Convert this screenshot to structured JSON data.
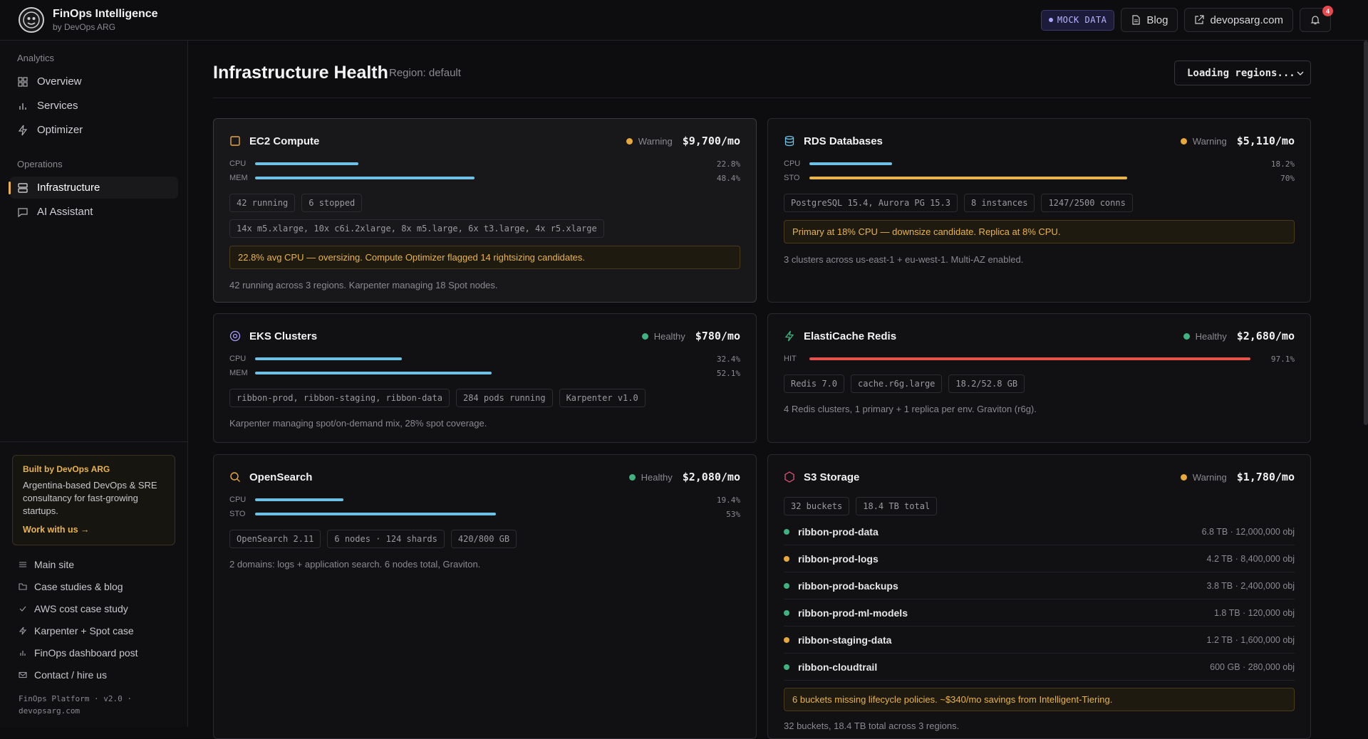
{
  "header": {
    "brand_title": "FinOps Intelligence",
    "brand_sub": "by DevOps ARG",
    "mock_label": "MOCK DATA",
    "blog_label": "Blog",
    "site_label": "devopsarg.com",
    "notif_count": "4"
  },
  "sidebar": {
    "analytics_label": "Analytics",
    "analytics_items": [
      {
        "label": "Overview",
        "icon": "grid-icon"
      },
      {
        "label": "Services",
        "icon": "bar-chart-icon"
      },
      {
        "label": "Optimizer",
        "icon": "bolt-icon"
      }
    ],
    "operations_label": "Operations",
    "operations_items": [
      {
        "label": "Infrastructure",
        "icon": "server-icon",
        "active": true
      },
      {
        "label": "AI Assistant",
        "icon": "chat-icon"
      }
    ],
    "promo": {
      "title": "Built by DevOps ARG",
      "desc": "Argentina-based DevOps & SRE consultancy for fast-growing startups.",
      "link": "Work with us →"
    },
    "links": [
      {
        "label": "Main site",
        "icon": "menu-icon"
      },
      {
        "label": "Case studies & blog",
        "icon": "folder-icon"
      },
      {
        "label": "AWS cost case study",
        "icon": "check-icon"
      },
      {
        "label": "Karpenter + Spot case",
        "icon": "bolt-icon"
      },
      {
        "label": "FinOps dashboard post",
        "icon": "bar-chart-icon"
      },
      {
        "label": "Contact / hire us",
        "icon": "mail-icon"
      }
    ],
    "footer_line1": "FinOps Platform · v2.0 ·",
    "footer_line2": "devopsarg.com"
  },
  "main": {
    "title": "Infrastructure Health",
    "region": "Region: default",
    "region_select": "Loading regions..."
  },
  "colors": {
    "warning": "#e8a83a",
    "healthy": "#3fb27f",
    "bar_blue": "#6ec1e4",
    "bar_amber": "#e8b44b",
    "bar_red": "#e5534b"
  },
  "cards": {
    "ec2": {
      "title": "EC2 Compute",
      "status": "Warning",
      "cost": "$9,700/mo",
      "bars": [
        {
          "label": "CPU",
          "pct": "22.8%",
          "value": 22.8
        },
        {
          "label": "MEM",
          "pct": "48.4%",
          "value": 48.4
        }
      ],
      "chips1": [
        "42 running",
        "6 stopped"
      ],
      "chips2": [
        "14x m5.xlarge, 10x c6i.2xlarge, 8x m5.large, 6x t3.large, 4x r5.xlarge"
      ],
      "alert": "22.8% avg CPU — oversizing. Compute Optimizer flagged 14 rightsizing candidates.",
      "note": "42 running across 3 regions. Karpenter managing 18 Spot nodes."
    },
    "rds": {
      "title": "RDS Databases",
      "status": "Warning",
      "cost": "$5,110/mo",
      "bars": [
        {
          "label": "CPU",
          "pct": "18.2%",
          "value": 18.2
        },
        {
          "label": "STO",
          "pct": "70%",
          "value": 70
        }
      ],
      "chips": [
        "PostgreSQL 15.4, Aurora PG 15.3",
        "8 instances",
        "1247/2500 conns"
      ],
      "alert": "Primary at 18% CPU — downsize candidate. Replica at 8% CPU.",
      "note": "3 clusters across us-east-1 + eu-west-1. Multi-AZ enabled."
    },
    "eks": {
      "title": "EKS Clusters",
      "status": "Healthy",
      "cost": "$780/mo",
      "bars": [
        {
          "label": "CPU",
          "pct": "32.4%",
          "value": 32.4
        },
        {
          "label": "MEM",
          "pct": "52.1%",
          "value": 52.1
        }
      ],
      "chips": [
        "ribbon-prod, ribbon-staging, ribbon-data",
        "284 pods running",
        "Karpenter v1.0"
      ],
      "note": "Karpenter managing spot/on-demand mix, 28% spot coverage."
    },
    "redis": {
      "title": "ElastiCache Redis",
      "status": "Healthy",
      "cost": "$2,680/mo",
      "bars": [
        {
          "label": "HIT",
          "pct": "97.1%",
          "value": 97.1
        }
      ],
      "chips": [
        "Redis 7.0",
        "cache.r6g.large",
        "18.2/52.8 GB"
      ],
      "note": "4 Redis clusters, 1 primary + 1 replica per env. Graviton (r6g)."
    },
    "opensearch": {
      "title": "OpenSearch",
      "status": "Healthy",
      "cost": "$2,080/mo",
      "bars": [
        {
          "label": "CPU",
          "pct": "19.4%",
          "value": 19.4
        },
        {
          "label": "STO",
          "pct": "53%",
          "value": 53
        }
      ],
      "chips": [
        "OpenSearch 2.11",
        "6 nodes · 124 shards",
        "420/800 GB"
      ],
      "note": "2 domains: logs + application search. 6 nodes total, Graviton."
    },
    "s3": {
      "title": "S3 Storage",
      "status": "Warning",
      "cost": "$1,780/mo",
      "chips": [
        "32 buckets",
        "18.4 TB total"
      ],
      "buckets": [
        {
          "name": "ribbon-prod-data",
          "meta": "6.8 TB · 12,000,000 obj",
          "status": "healthy"
        },
        {
          "name": "ribbon-prod-logs",
          "meta": "4.2 TB · 8,400,000 obj",
          "status": "warning"
        },
        {
          "name": "ribbon-prod-backups",
          "meta": "3.8 TB · 2,400,000 obj",
          "status": "healthy"
        },
        {
          "name": "ribbon-prod-ml-models",
          "meta": "1.8 TB · 120,000 obj",
          "status": "healthy"
        },
        {
          "name": "ribbon-staging-data",
          "meta": "1.2 TB · 1,600,000 obj",
          "status": "warning"
        },
        {
          "name": "ribbon-cloudtrail",
          "meta": "600 GB · 280,000 obj",
          "status": "healthy"
        }
      ],
      "alert": "6 buckets missing lifecycle policies. ~$340/mo savings from Intelligent-Tiering.",
      "note": "32 buckets, 18.4 TB total across 3 regions."
    }
  }
}
